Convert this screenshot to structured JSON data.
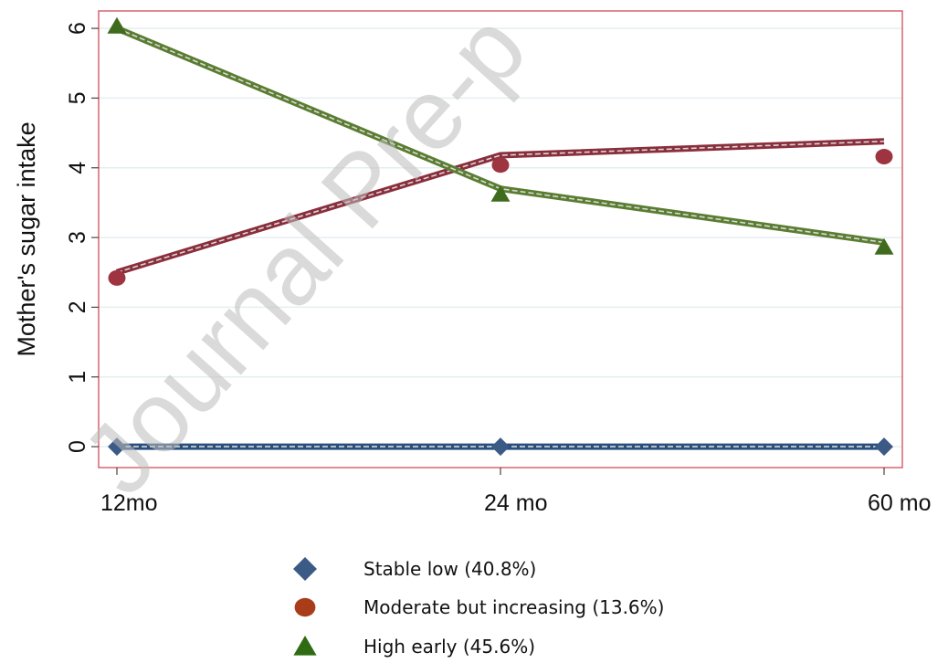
{
  "chart_data": {
    "type": "line",
    "ylabel": "Mother's sugar intake",
    "xlabel": "",
    "categories": [
      "12 mo",
      "24 mo",
      "60 mo"
    ],
    "x_tick_labels": [
      "12mo",
      "24 mo",
      "60 mo"
    ],
    "ylim": [
      -0.3,
      6.25
    ],
    "y_ticks": [
      0,
      1,
      2,
      3,
      4,
      5,
      6
    ],
    "grid": "horizontal",
    "legend_position": "bottom",
    "watermark": "Journal Pre-p",
    "series": [
      {
        "name": "Stable low (40.8%)",
        "marker": "diamond",
        "color": "#2a4f7c",
        "marker_color": "#3c5a86",
        "observed": [
          0,
          0,
          0
        ],
        "fitted": [
          0,
          0,
          0
        ]
      },
      {
        "name": "Moderate but increasing (13.6%)",
        "marker": "circle",
        "color": "#8b2e3c",
        "marker_color": "#9e3440",
        "legend_marker_color": "#a93d1a",
        "observed": [
          2.42,
          4.04,
          4.16
        ],
        "fitted": [
          2.5,
          4.18,
          4.38
        ]
      },
      {
        "name": "High early (45.6%)",
        "marker": "triangle",
        "color": "#5b7d31",
        "marker_color": "#3f6b1f",
        "legend_marker_color": "#2e6b12",
        "observed": [
          6.03,
          3.62,
          2.86
        ],
        "fitted": [
          6.0,
          3.7,
          2.93
        ]
      }
    ]
  }
}
